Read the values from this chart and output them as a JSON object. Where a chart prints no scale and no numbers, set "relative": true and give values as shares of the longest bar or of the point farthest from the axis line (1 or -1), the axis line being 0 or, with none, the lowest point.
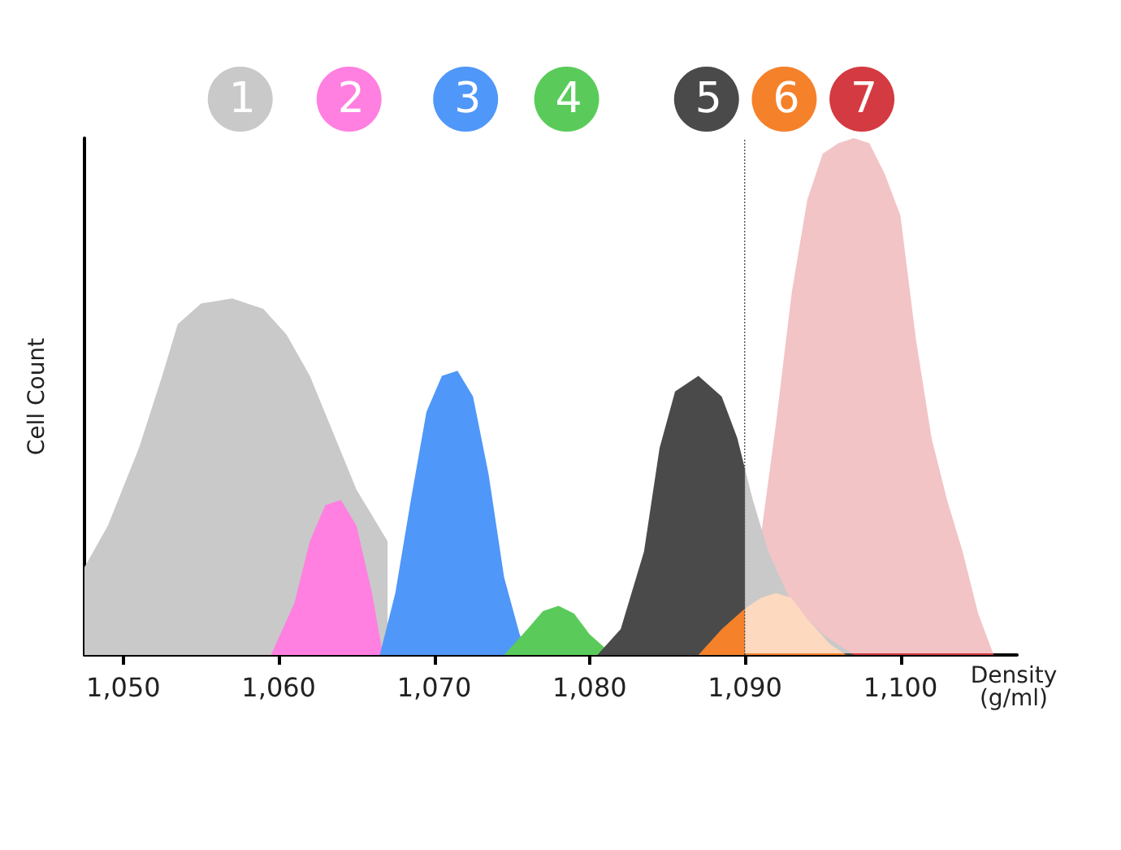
{
  "chart_data": {
    "type": "area",
    "relative": true,
    "xlabel": "Density\n(g/ml)",
    "ylabel": "Cell Count",
    "xlim": [
      1047.5,
      1107.5
    ],
    "xticks": [
      {
        "value": 1050,
        "label": "1,050"
      },
      {
        "value": 1060,
        "label": "1,060"
      },
      {
        "value": 1070,
        "label": "1,070"
      },
      {
        "value": 1080,
        "label": "1,080"
      },
      {
        "value": 1090,
        "label": "1,090"
      },
      {
        "value": 1100,
        "label": "1,100"
      }
    ],
    "legend": "top",
    "grid": false,
    "ref_lines": [
      {
        "axis": "x",
        "value": 1090,
        "line_style": "dotted",
        "color": "#555555"
      }
    ],
    "bands": [
      {
        "axis": "x",
        "from": 1090,
        "to": 1107.5,
        "color": "#ffffff"
      }
    ],
    "series": [
      {
        "name": "1",
        "color": "#c9c9c9",
        "x": [
          1047.5,
          1049,
          1051,
          1052.5,
          1053.5,
          1055,
          1057,
          1059,
          1060.5,
          1062,
          1063.5,
          1065,
          1067
        ],
        "values": [
          0.17,
          0.25,
          0.4,
          0.54,
          0.64,
          0.68,
          0.69,
          0.67,
          0.62,
          0.54,
          0.43,
          0.32,
          0.22
        ]
      },
      {
        "name": "2",
        "color": "#ff80e0",
        "x": [
          1059.5,
          1061,
          1062,
          1063,
          1064,
          1065,
          1066,
          1066.7
        ],
        "values": [
          0,
          0.1,
          0.22,
          0.29,
          0.3,
          0.25,
          0.12,
          0
        ]
      },
      {
        "name": "3",
        "color": "#4f97f9",
        "x": [
          1066.5,
          1067.5,
          1068.5,
          1069.5,
          1070.5,
          1071.5,
          1072.5,
          1073.5,
          1074.5,
          1075.5,
          1076
        ],
        "values": [
          0,
          0.12,
          0.3,
          0.47,
          0.54,
          0.55,
          0.5,
          0.35,
          0.15,
          0.04,
          0
        ]
      },
      {
        "name": "4",
        "color": "#5acb5a",
        "x": [
          1074.5,
          1076,
          1077,
          1078,
          1079,
          1080,
          1081.5
        ],
        "values": [
          0,
          0.05,
          0.085,
          0.095,
          0.08,
          0.04,
          0
        ]
      },
      {
        "name": "5",
        "color": "#4a4a4a",
        "x": [
          1080.5,
          1082,
          1083.5,
          1084.5,
          1085.5,
          1087,
          1088.5,
          1089.5,
          1090.5,
          1091.5,
          1093,
          1095,
          1097
        ],
        "values": [
          0,
          0.05,
          0.2,
          0.4,
          0.51,
          0.54,
          0.5,
          0.42,
          0.3,
          0.2,
          0.1,
          0.04,
          0
        ]
      },
      {
        "name": "6",
        "color": "#f5812a",
        "x": [
          1087,
          1088.5,
          1090,
          1091,
          1092,
          1093,
          1094,
          1095.5,
          1096.5
        ],
        "values": [
          0,
          0.05,
          0.09,
          0.11,
          0.12,
          0.11,
          0.07,
          0.02,
          0
        ]
      },
      {
        "name": "7",
        "color": "#d43a41",
        "x": [
          1090,
          1092,
          1093,
          1094,
          1095,
          1096,
          1097,
          1098,
          1099,
          1100,
          1101,
          1102,
          1103,
          1104,
          1105,
          1106
        ],
        "values": [
          0,
          0.45,
          0.7,
          0.88,
          0.97,
          0.99,
          1,
          0.99,
          0.93,
          0.85,
          0.61,
          0.42,
          0.3,
          0.2,
          0.08,
          0
        ]
      }
    ]
  }
}
